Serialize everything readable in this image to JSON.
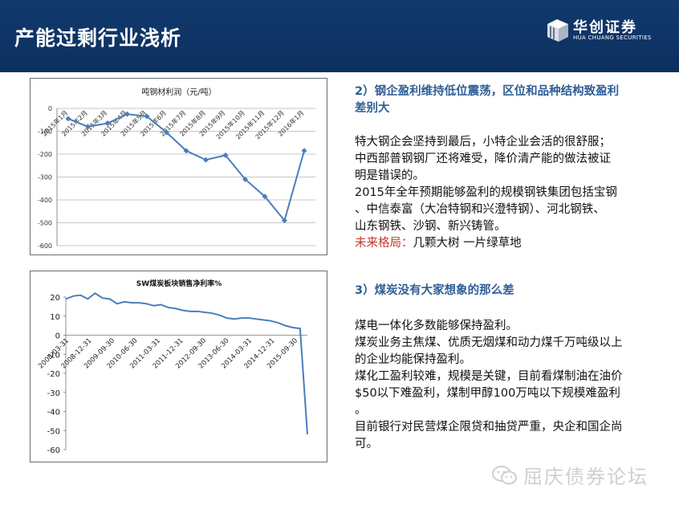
{
  "header": {
    "title": "产能过剩行业浅析",
    "logo_cn": "华创证券",
    "logo_en": "HUA CHUANG SECURITIES"
  },
  "section1": {
    "title_line1": "2）钢企盈利维持低位震荡，区位和品种结构致盈利",
    "title_line2": "差别大",
    "lines": [
      "特大钢企会坚持到最后，小特企业会活的很舒服；",
      "中西部普钢钢厂还将难受，降价清产能的做法被证",
      "明是错误的。",
      "2015年全年预期能够盈利的规模钢铁集团包括宝钢",
      "、中信泰富（大冶特钢和兴澄特钢）、河北钢铁、",
      "山东钢铁、沙钢、新兴铸管。"
    ],
    "future_label": "未来格局：",
    "future_text": "几颗大树  一片绿草地"
  },
  "section2": {
    "title": "3）煤炭没有大家想象的那么差",
    "lines": [
      "煤电一体化多数能够保持盈利。",
      "煤炭业务主焦煤、优质无烟煤和动力煤千万吨级以上",
      "的企业均能保持盈利。",
      "煤化工盈利较难，规模是关键，目前看煤制油在油价",
      "$50以下难盈利，煤制甲醇100万吨以下规模难盈利",
      "。",
      "目前银行对民营煤企限贷和抽贷严重，央企和国企尚",
      "可。"
    ]
  },
  "watermark": {
    "text": "屈庆债券论坛",
    "icon": "wechat-icon"
  },
  "chart_data": [
    {
      "type": "line",
      "title": "吨钢材利润（元/吨）",
      "categories": [
        "2015年1月",
        "2015年2月",
        "2015年3月",
        "2015年4月",
        "2015年5月",
        "2015年6月",
        "2015年7月",
        "2015年8月",
        "2015年9月",
        "2015年10月",
        "2015年11月",
        "2015年12月",
        "2016年1月"
      ],
      "values": [
        -45,
        -80,
        -65,
        -25,
        -35,
        -105,
        -185,
        -225,
        -205,
        -310,
        -385,
        -490,
        -185
      ],
      "ylim": [
        -600,
        0
      ],
      "yticks": [
        0,
        -100,
        -200,
        -300,
        -400,
        -500,
        -600
      ],
      "ytick_labels": [
        "0",
        "-100",
        "-200",
        "-300",
        "-400",
        "-500",
        "-600"
      ],
      "color": "#4a7ebb",
      "grid": true
    },
    {
      "type": "line",
      "title": "SW煤炭板块销售净利率%",
      "x_labels": [
        "2008-03-31",
        "2008-12-31",
        "2009-09-30",
        "2010-06-30",
        "2011-03-31",
        "2011-12-31",
        "2012-09-30",
        "2013-06-30",
        "2014-03-31",
        "2014-12-31",
        "2015-09-30"
      ],
      "values": [
        19,
        20.5,
        21,
        19,
        22,
        19.5,
        19,
        16.5,
        17.5,
        17,
        17,
        16.5,
        15.5,
        16,
        14.5,
        14,
        13,
        12.5,
        12.5,
        12,
        11.5,
        10.5,
        9,
        8.5,
        9,
        9,
        8.5,
        8,
        7.5,
        6.5,
        5,
        4,
        3.5,
        -52
      ],
      "ylim": [
        -60,
        20
      ],
      "yticks": [
        20,
        10,
        0,
        -10,
        -20,
        -30,
        -40,
        -50,
        -60
      ],
      "ytick_labels": [
        "20",
        "10",
        "0",
        "-10",
        "-20",
        "-30",
        "-40",
        "-50",
        "-60"
      ],
      "color": "#4a7ebb",
      "grid": false
    }
  ]
}
